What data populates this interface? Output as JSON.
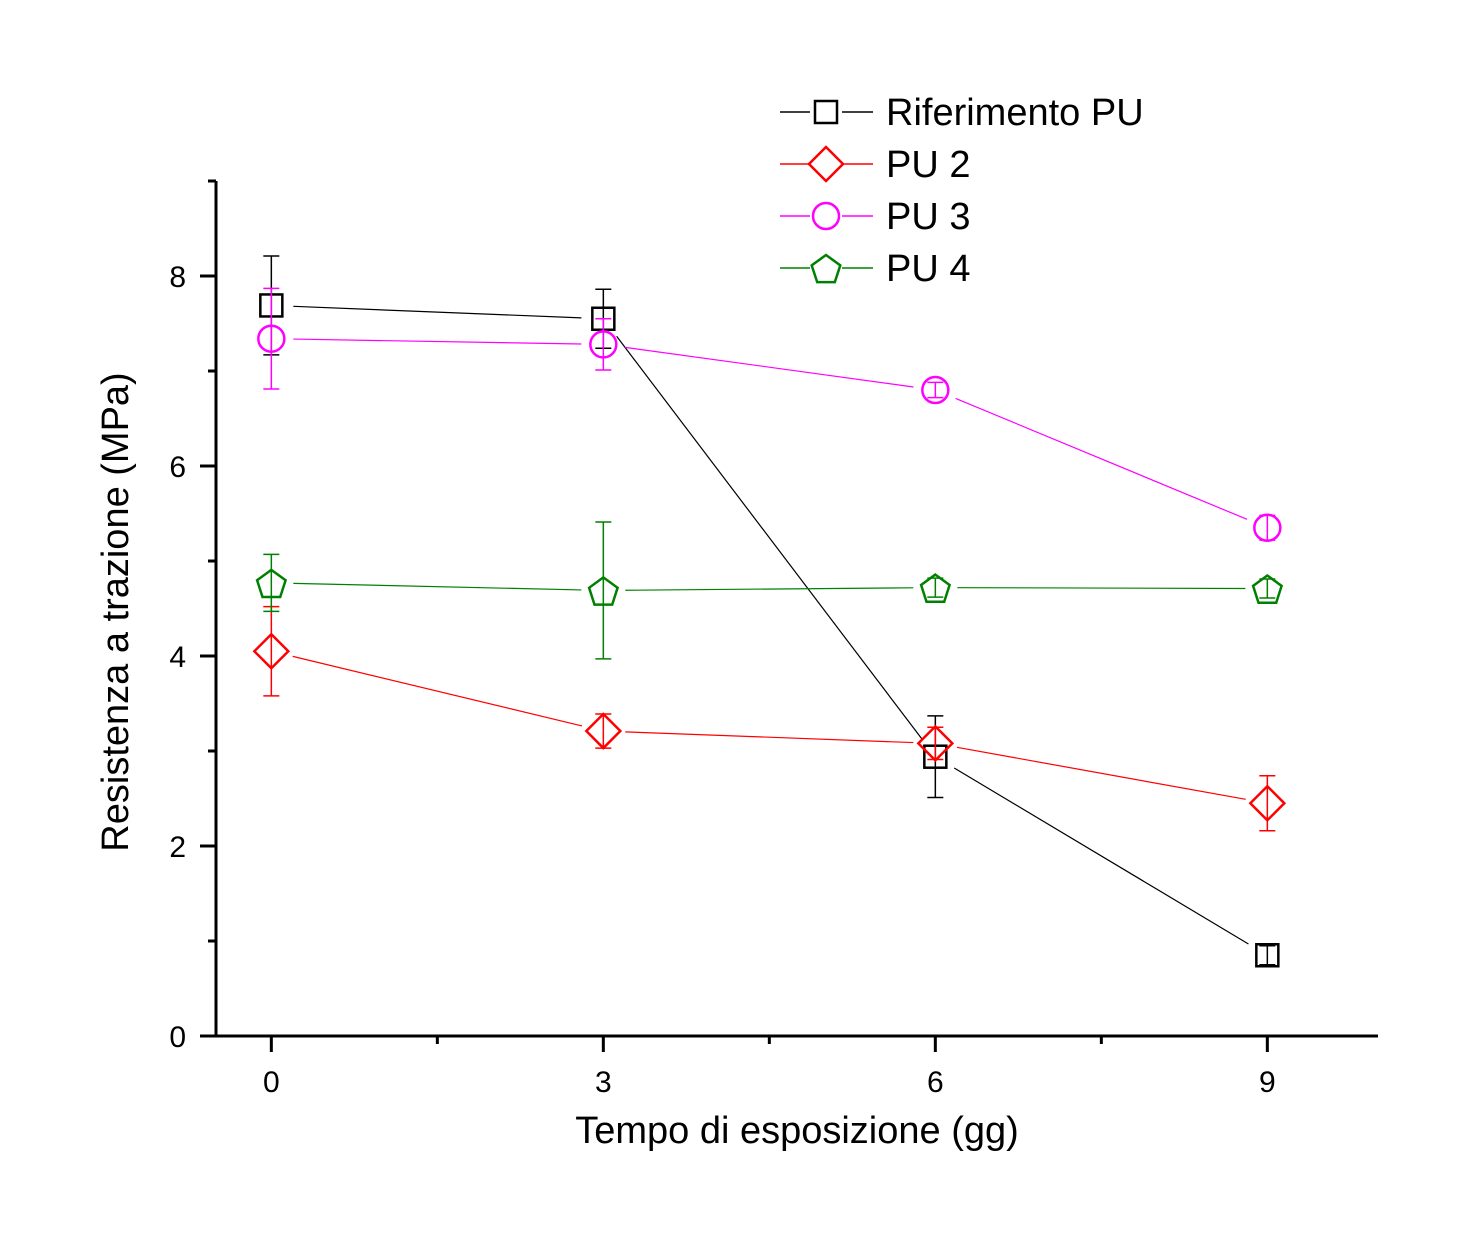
{
  "chart_data": {
    "type": "line",
    "title": "",
    "xlabel": "Tempo di esposizione (gg)",
    "ylabel": "Resistenza a trazione (MPa)",
    "xlim": [
      -0.5,
      10
    ],
    "ylim": [
      0,
      9
    ],
    "x_ticks": [
      0,
      3,
      6,
      9
    ],
    "x_minor_ticks": [
      1.5,
      4.5,
      7.5
    ],
    "y_ticks": [
      0,
      2,
      4,
      6,
      8
    ],
    "y_minor_ticks": [
      1,
      3,
      5,
      7,
      9
    ],
    "x_tick_labels": [
      "0",
      "3",
      "6",
      "9"
    ],
    "y_tick_labels": [
      "0",
      "2",
      "4",
      "6",
      "8"
    ],
    "grid": false,
    "legend_position": "top-right",
    "x": [
      0,
      3,
      6,
      9
    ],
    "series": [
      {
        "name": "Riferimento PU",
        "color": "#000000",
        "marker": "square",
        "values": [
          7.69,
          7.55,
          2.94,
          0.85
        ],
        "errors": [
          0.52,
          0.31,
          0.43,
          0.1
        ]
      },
      {
        "name": "PU 2",
        "color": "#ff0000",
        "marker": "diamond",
        "values": [
          4.05,
          3.21,
          3.08,
          2.45
        ],
        "errors": [
          0.47,
          0.18,
          0.17,
          0.29
        ]
      },
      {
        "name": "PU 3",
        "color": "#ff00ff",
        "marker": "circle",
        "values": [
          7.34,
          7.28,
          6.8,
          5.35
        ],
        "errors": [
          0.53,
          0.27,
          0.08,
          0.13
        ]
      },
      {
        "name": "PU 4",
        "color": "#008000",
        "marker": "pentagon",
        "values": [
          4.77,
          4.69,
          4.72,
          4.71
        ],
        "errors": [
          0.3,
          0.72,
          0.1,
          0.1
        ]
      }
    ]
  }
}
